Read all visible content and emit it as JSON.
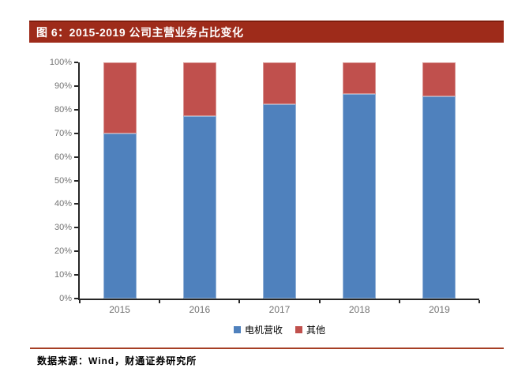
{
  "header": {
    "title": "图 6：2015-2019 公司主营业务占比变化"
  },
  "chart_data": {
    "type": "bar",
    "stacked": true,
    "title": "图 6：2015-2019 公司主营业务占比变化",
    "categories": [
      "2015",
      "2016",
      "2017",
      "2018",
      "2019"
    ],
    "series": [
      {
        "name": "电机营收",
        "color": "#4F81BD",
        "border_color": "#95B3D7",
        "values": [
          70.0,
          77.4,
          82.4,
          86.6,
          85.7
        ]
      },
      {
        "name": "其他",
        "color": "#C0504D",
        "border_color": "#D99694",
        "values": [
          30.0,
          22.6,
          17.6,
          13.4,
          14.3
        ]
      }
    ],
    "xlabel": "",
    "ylabel": "",
    "ylim": [
      0,
      100
    ],
    "ytick_step": 10,
    "ytick_labels": [
      "0%",
      "10%",
      "20%",
      "30%",
      "40%",
      "50%",
      "60%",
      "70%",
      "80%",
      "90%",
      "100%"
    ],
    "grid": false,
    "legend_position": "bottom"
  },
  "footer": {
    "source": "数据来源：Wind，财通证券研究所"
  },
  "colors": {
    "title_bar_bg": "#9E2B1A",
    "title_bar_top_border": "#7E1C0C",
    "title_text": "#FFFFFF",
    "axis_line": "#262626",
    "tick_label": "#737373",
    "footer_divider": "#A63E24",
    "series_blue": "#4F81BD",
    "series_red": "#C0504D"
  }
}
